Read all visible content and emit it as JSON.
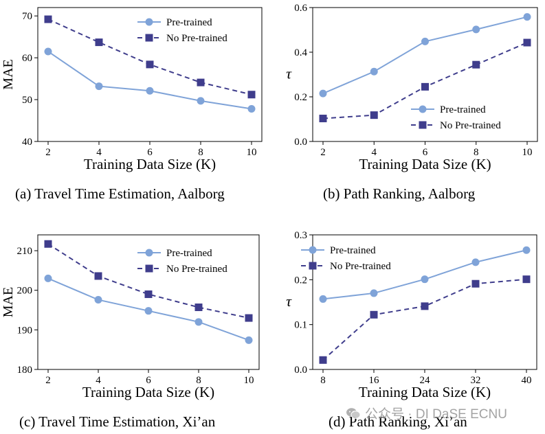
{
  "chart_data": [
    {
      "type": "line",
      "caption": "(a)  Travel Time Estimation, Aalborg",
      "x": [
        "2",
        "4",
        "6",
        "8",
        "10"
      ],
      "xlabel": "Training Data Size (K)",
      "ylabel": "MAE",
      "ylim": [
        40,
        72
      ],
      "yticks": [
        "40",
        "50",
        "60",
        "70"
      ],
      "legend_position": "top-right",
      "series": [
        {
          "name": "Pre-trained",
          "values": [
            61.5,
            53.2,
            52.1,
            49.7,
            47.8
          ]
        },
        {
          "name": "No Pre-trained",
          "values": [
            69.2,
            63.7,
            58.4,
            54.1,
            51.2
          ]
        }
      ]
    },
    {
      "type": "line",
      "caption": "(b)  Path Ranking, Aalborg",
      "x": [
        "2",
        "4",
        "6",
        "8",
        "10"
      ],
      "xlabel": "Training Data Size (K)",
      "ylabel": "τ",
      "ylim": [
        0.0,
        0.6
      ],
      "yticks": [
        "0.0",
        "0.2",
        "0.4",
        "0.6"
      ],
      "legend_position": "lower-right",
      "series": [
        {
          "name": "Pre-trained",
          "values": [
            0.215,
            0.313,
            0.448,
            0.502,
            0.558
          ]
        },
        {
          "name": "No Pre-trained",
          "values": [
            0.103,
            0.118,
            0.245,
            0.344,
            0.443
          ]
        }
      ]
    },
    {
      "type": "line",
      "caption": "(c)  Travel Time Estimation, Xi’an",
      "x": [
        "2",
        "4",
        "6",
        "8",
        "10"
      ],
      "xlabel": "Training Data Size (K)",
      "ylabel": "MAE",
      "ylim": [
        180,
        214
      ],
      "yticks": [
        "180",
        "190",
        "200",
        "210"
      ],
      "legend_position": "top-right",
      "series": [
        {
          "name": "Pre-trained",
          "values": [
            203.0,
            197.6,
            194.8,
            192.0,
            187.4
          ]
        },
        {
          "name": "No Pre-trained",
          "values": [
            211.7,
            203.6,
            199.0,
            195.7,
            193.0
          ]
        }
      ]
    },
    {
      "type": "line",
      "caption": "(d)  Path Ranking, Xi’an",
      "x": [
        "8",
        "16",
        "24",
        "32",
        "40"
      ],
      "xlabel": "Training Data Size (K)",
      "ylabel": "τ",
      "ylim": [
        0.0,
        0.3
      ],
      "yticks": [
        "0.0",
        "0.1",
        "0.2",
        "0.3"
      ],
      "legend_position": "top-left",
      "series": [
        {
          "name": "Pre-trained",
          "values": [
            0.157,
            0.17,
            0.201,
            0.239,
            0.266
          ]
        },
        {
          "name": "No Pre-trained",
          "values": [
            0.021,
            0.122,
            0.141,
            0.191,
            0.201
          ]
        }
      ]
    }
  ],
  "colors": {
    "pretrained": "#7fa3d8",
    "no_pretrained": "#3f3d8c"
  },
  "watermark": {
    "icon": "wechat-icon",
    "text": "公众号 · DI DaSE ECNU"
  }
}
